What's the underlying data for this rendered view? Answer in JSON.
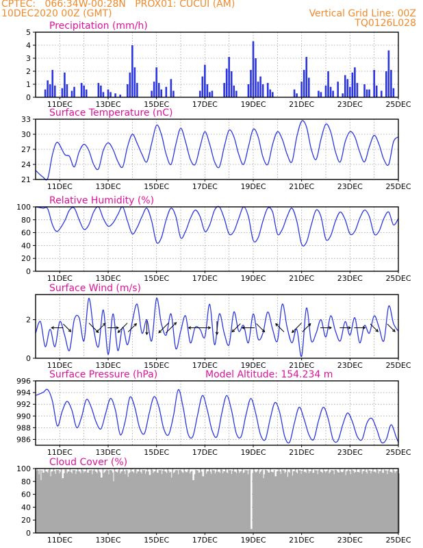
{
  "header": {
    "line1_left": "CPTEC:   066:34W-00:28N   PROX01: CUCUI (AM)",
    "line2_left": "10DEC2020 00Z (GMT)",
    "line2_right": "Vertical Grid Line: 00Z",
    "line3_right": "TQ0126L028"
  },
  "colors": {
    "series": "#2a35e0",
    "cloud": "#aaaaaa",
    "title": "#e0119a",
    "header": "#f08a2c"
  },
  "x_axis": {
    "labels": [
      "11DEC",
      "13DEC",
      "15DEC",
      "17DEC",
      "19DEC",
      "21DEC",
      "23DEC",
      "25DEC"
    ],
    "label_days": [
      11,
      13,
      15,
      17,
      19,
      21,
      23,
      25
    ],
    "range_days": [
      10.0,
      25.0
    ],
    "grid_every_days": 1
  },
  "chart_data": [
    {
      "type": "bar",
      "title": "Precipitation (mm/h)",
      "ylim": [
        0,
        5
      ],
      "yticks": [
        "0",
        "1",
        "2",
        "3",
        "4",
        "5"
      ],
      "x_days": [
        10.4,
        10.5,
        10.6,
        10.7,
        10.8,
        11.1,
        11.2,
        11.3,
        11.5,
        11.6,
        11.9,
        12.0,
        12.1,
        12.6,
        12.7,
        12.8,
        13.0,
        13.1,
        13.3,
        13.5,
        13.8,
        13.9,
        14.0,
        14.1,
        14.2,
        14.8,
        14.9,
        15.0,
        15.1,
        15.2,
        15.4,
        15.6,
        15.7,
        16.8,
        16.9,
        17.0,
        17.1,
        17.2,
        17.3,
        17.8,
        17.9,
        18.0,
        18.1,
        18.2,
        18.3,
        18.8,
        18.9,
        19.0,
        19.1,
        19.2,
        19.3,
        19.4,
        19.6,
        19.7,
        19.8,
        20.7,
        20.8,
        21.0,
        21.1,
        21.2,
        21.3,
        21.7,
        21.8,
        22.0,
        22.1,
        22.2,
        22.3,
        22.5,
        22.7,
        22.8,
        22.9,
        23.0,
        23.1,
        23.2,
        23.3,
        23.6,
        23.7,
        23.8,
        24.0,
        24.1,
        24.3,
        24.5,
        24.6,
        24.7,
        24.8
      ],
      "values": [
        0.6,
        1.3,
        1.0,
        2.1,
        0.9,
        0.7,
        1.9,
        1.0,
        0.5,
        0.8,
        1.1,
        0.9,
        0.6,
        1.1,
        0.9,
        0.4,
        0.6,
        0.4,
        0.3,
        0.2,
        1.0,
        1.9,
        4.0,
        2.3,
        1.1,
        0.5,
        1.2,
        2.3,
        1.1,
        0.6,
        0.8,
        1.4,
        0.5,
        0.5,
        1.6,
        2.5,
        1.0,
        0.4,
        0.5,
        1.1,
        2.2,
        3.1,
        2.0,
        0.9,
        0.5,
        1.0,
        2.1,
        4.3,
        3.0,
        1.2,
        1.6,
        1.0,
        1.1,
        0.6,
        0.4,
        0.6,
        0.3,
        1.2,
        2.1,
        3.1,
        1.5,
        0.5,
        0.4,
        0.9,
        2.0,
        0.8,
        0.5,
        1.2,
        0.3,
        1.7,
        1.4,
        0.8,
        1.9,
        2.3,
        1.1,
        1.0,
        0.6,
        0.6,
        2.1,
        0.9,
        0.5,
        2.0,
        3.6,
        2.1,
        0.7
      ]
    },
    {
      "type": "line",
      "title": "Surface Temperature (nC)",
      "ylim": [
        21,
        33
      ],
      "yticks": [
        "21",
        "24",
        "27",
        "30",
        "33"
      ],
      "x_days": [
        10.0,
        10.3,
        10.5,
        10.7,
        10.9,
        11.2,
        11.4,
        11.6,
        11.8,
        12.0,
        12.2,
        12.4,
        12.6,
        12.8,
        13.0,
        13.2,
        13.4,
        13.6,
        13.8,
        14.0,
        14.2,
        14.4,
        14.6,
        14.8,
        15.0,
        15.2,
        15.4,
        15.6,
        15.8,
        16.0,
        16.2,
        16.4,
        16.6,
        16.8,
        17.0,
        17.2,
        17.4,
        17.6,
        17.8,
        18.0,
        18.2,
        18.4,
        18.6,
        18.8,
        19.0,
        19.2,
        19.4,
        19.6,
        19.8,
        20.0,
        20.2,
        20.4,
        20.6,
        20.8,
        21.0,
        21.2,
        21.4,
        21.6,
        21.8,
        22.0,
        22.2,
        22.4,
        22.6,
        22.8,
        23.0,
        23.2,
        23.4,
        23.6,
        23.8,
        24.0,
        24.2,
        24.4,
        24.6,
        24.8,
        25.0
      ],
      "values": [
        22.8,
        21.5,
        21.2,
        26.0,
        28.4,
        26.0,
        25.6,
        23.5,
        26.5,
        28.0,
        26.8,
        24.0,
        23.1,
        26.8,
        28.3,
        27.0,
        24.6,
        23.5,
        27.5,
        30.0,
        28.2,
        26.0,
        24.5,
        28.2,
        31.8,
        30.0,
        26.0,
        24.0,
        28.0,
        31.2,
        28.5,
        25.0,
        24.0,
        27.5,
        30.5,
        28.0,
        24.5,
        23.5,
        27.5,
        30.8,
        29.5,
        26.0,
        24.0,
        27.5,
        31.0,
        29.5,
        25.5,
        24.0,
        28.0,
        30.5,
        29.0,
        26.0,
        24.5,
        29.5,
        32.6,
        31.5,
        27.0,
        25.0,
        29.0,
        32.0,
        30.5,
        26.5,
        24.5,
        28.5,
        30.5,
        29.5,
        26.5,
        24.5,
        27.5,
        29.8,
        28.0,
        25.0,
        24.0,
        28.5,
        29.5
      ]
    },
    {
      "type": "line",
      "title": "Relative Humidity (%)",
      "ylim": [
        0,
        100
      ],
      "yticks": [
        "0",
        "20",
        "40",
        "60",
        "80",
        "100"
      ],
      "x_days": [
        10.0,
        10.3,
        10.5,
        10.7,
        10.9,
        11.2,
        11.4,
        11.6,
        11.8,
        12.0,
        12.2,
        12.4,
        12.6,
        12.8,
        13.0,
        13.2,
        13.4,
        13.6,
        13.8,
        14.0,
        14.2,
        14.4,
        14.6,
        14.8,
        15.0,
        15.2,
        15.4,
        15.6,
        15.8,
        16.0,
        16.2,
        16.4,
        16.6,
        16.8,
        17.0,
        17.2,
        17.4,
        17.6,
        17.8,
        18.0,
        18.2,
        18.4,
        18.6,
        18.8,
        19.0,
        19.2,
        19.4,
        19.6,
        19.8,
        20.0,
        20.2,
        20.4,
        20.6,
        20.8,
        21.0,
        21.2,
        21.4,
        21.6,
        21.8,
        22.0,
        22.2,
        22.4,
        22.6,
        22.8,
        23.0,
        23.2,
        23.4,
        23.6,
        23.8,
        24.0,
        24.2,
        24.4,
        24.6,
        24.8,
        25.0
      ],
      "values": [
        100,
        98,
        97,
        72,
        62,
        78,
        95,
        98,
        80,
        65,
        72,
        92,
        100,
        82,
        70,
        75,
        88,
        100,
        78,
        58,
        68,
        85,
        98,
        78,
        45,
        52,
        80,
        98,
        85,
        52,
        62,
        82,
        95,
        85,
        62,
        72,
        95,
        100,
        82,
        58,
        62,
        82,
        100,
        85,
        48,
        52,
        78,
        98,
        92,
        58,
        65,
        85,
        98,
        78,
        42,
        45,
        72,
        95,
        85,
        50,
        55,
        78,
        92,
        80,
        58,
        62,
        82,
        95,
        85,
        58,
        62,
        82,
        92,
        72,
        82
      ]
    },
    {
      "type": "line",
      "title": "Surface Wind (m/s)",
      "ylim": [
        0,
        3.3
      ],
      "yticks": [
        "0",
        "2"
      ],
      "x_days": [
        10.0,
        10.2,
        10.4,
        10.6,
        10.8,
        11.0,
        11.2,
        11.4,
        11.6,
        11.8,
        12.0,
        12.2,
        12.4,
        12.6,
        12.8,
        13.0,
        13.2,
        13.4,
        13.6,
        13.8,
        14.0,
        14.2,
        14.4,
        14.6,
        14.8,
        15.0,
        15.2,
        15.4,
        15.6,
        15.8,
        16.0,
        16.2,
        16.4,
        16.6,
        16.8,
        17.0,
        17.2,
        17.4,
        17.6,
        17.8,
        18.0,
        18.2,
        18.4,
        18.6,
        18.8,
        19.0,
        19.2,
        19.4,
        19.6,
        19.8,
        20.0,
        20.2,
        20.4,
        20.6,
        20.8,
        21.0,
        21.2,
        21.4,
        21.6,
        21.8,
        22.0,
        22.2,
        22.4,
        22.6,
        22.8,
        23.0,
        23.2,
        23.4,
        23.6,
        23.8,
        24.0,
        24.2,
        24.4,
        24.6,
        24.8,
        25.0
      ],
      "values": [
        1.3,
        1.9,
        0.6,
        1.5,
        0.6,
        1.9,
        1.2,
        0.4,
        2.0,
        2.1,
        0.9,
        3.1,
        1.5,
        0.6,
        2.5,
        0.2,
        2.3,
        0.4,
        1.6,
        0.7,
        1.9,
        2.8,
        1.3,
        2.0,
        0.9,
        3.1,
        1.8,
        1.2,
        2.3,
        0.5,
        1.4,
        2.2,
        0.8,
        1.6,
        1.5,
        1.1,
        2.8,
        0.7,
        2.3,
        1.3,
        0.7,
        2.4,
        1.4,
        1.7,
        0.8,
        2.3,
        1.0,
        1.3,
        2.4,
        1.5,
        0.9,
        2.8,
        1.6,
        0.8,
        1.5,
        0.1,
        2.6,
        0.9,
        1.3,
        2.0,
        1.1,
        2.2,
        1.4,
        0.9,
        1.9,
        1.2,
        2.1,
        0.8,
        1.7,
        1.3,
        2.2,
        1.6,
        0.9,
        2.7,
        1.8,
        1.4
      ],
      "arrows": [
        {
          "day": 10.9,
          "speed": 0.6,
          "dir": "W"
        },
        {
          "day": 11.3,
          "speed": 0.5,
          "dir": "SE"
        },
        {
          "day": 12.4,
          "speed": 0.8,
          "dir": "SE"
        },
        {
          "day": 12.7,
          "speed": 0.7,
          "dir": "NE"
        },
        {
          "day": 13.2,
          "speed": 0.5,
          "dir": "E"
        },
        {
          "day": 13.6,
          "speed": 0.8,
          "dir": "SW"
        },
        {
          "day": 14.0,
          "speed": 0.6,
          "dir": "NE"
        },
        {
          "day": 14.6,
          "speed": 0.8,
          "dir": "S"
        },
        {
          "day": 15.3,
          "speed": 0.9,
          "dir": "SW"
        },
        {
          "day": 15.6,
          "speed": 1.0,
          "dir": "NE"
        },
        {
          "day": 16.6,
          "speed": 0.8,
          "dir": "W"
        },
        {
          "day": 16.9,
          "speed": 1.1,
          "dir": "E"
        },
        {
          "day": 17.5,
          "speed": 0.8,
          "dir": "S"
        },
        {
          "day": 18.3,
          "speed": 0.6,
          "dir": "SW"
        },
        {
          "day": 18.8,
          "speed": 0.7,
          "dir": "W"
        },
        {
          "day": 19.3,
          "speed": 0.6,
          "dir": "SE"
        },
        {
          "day": 20.1,
          "speed": 0.6,
          "dir": "NW"
        },
        {
          "day": 20.8,
          "speed": 0.8,
          "dir": "SW"
        },
        {
          "day": 21.2,
          "speed": 0.6,
          "dir": "NE"
        },
        {
          "day": 22.0,
          "speed": 0.5,
          "dir": "E"
        },
        {
          "day": 22.8,
          "speed": 0.5,
          "dir": "E"
        },
        {
          "day": 23.4,
          "speed": 0.5,
          "dir": "E"
        },
        {
          "day": 24.0,
          "speed": 0.5,
          "dir": "SE"
        },
        {
          "day": 24.7,
          "speed": 0.5,
          "dir": "SE"
        }
      ]
    },
    {
      "type": "line",
      "title": "Surface Pressure (hPa)",
      "annotation": "Model Altitude: 154.234 m",
      "ylim": [
        985,
        996
      ],
      "yticks": [
        "986",
        "988",
        "990",
        "992",
        "994",
        "996"
      ],
      "x_days": [
        10.0,
        10.3,
        10.5,
        10.7,
        10.9,
        11.1,
        11.3,
        11.5,
        11.7,
        11.9,
        12.1,
        12.3,
        12.5,
        12.7,
        12.9,
        13.1,
        13.3,
        13.5,
        13.7,
        13.9,
        14.1,
        14.3,
        14.5,
        14.7,
        14.9,
        15.1,
        15.3,
        15.5,
        15.7,
        15.9,
        16.1,
        16.3,
        16.5,
        16.7,
        16.9,
        17.1,
        17.3,
        17.5,
        17.7,
        17.9,
        18.1,
        18.3,
        18.5,
        18.7,
        18.9,
        19.1,
        19.3,
        19.5,
        19.7,
        19.9,
        20.1,
        20.3,
        20.5,
        20.7,
        20.9,
        21.1,
        21.3,
        21.5,
        21.7,
        21.9,
        22.1,
        22.3,
        22.5,
        22.7,
        22.9,
        23.1,
        23.3,
        23.5,
        23.7,
        23.9,
        24.1,
        24.3,
        24.5,
        24.7,
        24.9,
        25.0
      ],
      "values": [
        993.5,
        994.0,
        994.5,
        992.5,
        988.3,
        990.8,
        992.5,
        991.0,
        988.0,
        989.8,
        992.8,
        991.5,
        989.0,
        987.8,
        990.5,
        993.0,
        991.0,
        986.8,
        989.0,
        993.2,
        991.5,
        988.0,
        987.0,
        990.5,
        993.3,
        991.5,
        987.8,
        986.8,
        990.0,
        994.5,
        991.5,
        987.0,
        986.5,
        990.2,
        993.5,
        991.0,
        987.5,
        986.5,
        990.5,
        993.5,
        991.0,
        987.0,
        986.5,
        990.2,
        993.0,
        990.5,
        986.8,
        986.0,
        989.5,
        992.3,
        990.5,
        986.5,
        985.5,
        988.8,
        991.5,
        989.5,
        986.8,
        986.0,
        989.2,
        991.5,
        989.5,
        986.0,
        985.8,
        988.5,
        990.5,
        989.0,
        986.5,
        986.0,
        988.8,
        989.6,
        987.8,
        985.5,
        986.0,
        988.5,
        986.5,
        985.5
      ]
    },
    {
      "type": "bar",
      "title": "Cloud Cover (%)",
      "ylim": [
        0,
        100
      ],
      "yticks": [
        "0",
        "20",
        "40",
        "60",
        "80",
        "100"
      ],
      "baseline": 96,
      "dips_days": [
        10.2,
        10.6,
        11.1,
        12.7,
        13.2,
        13.8,
        14.7,
        15.6,
        16.5,
        16.9,
        18.9,
        19.4,
        19.9,
        20.4,
        20.6,
        22.8
      ],
      "dips_values": [
        82,
        88,
        85,
        86,
        80,
        87,
        90,
        86,
        82,
        88,
        6,
        85,
        88,
        87,
        89,
        90
      ]
    }
  ]
}
